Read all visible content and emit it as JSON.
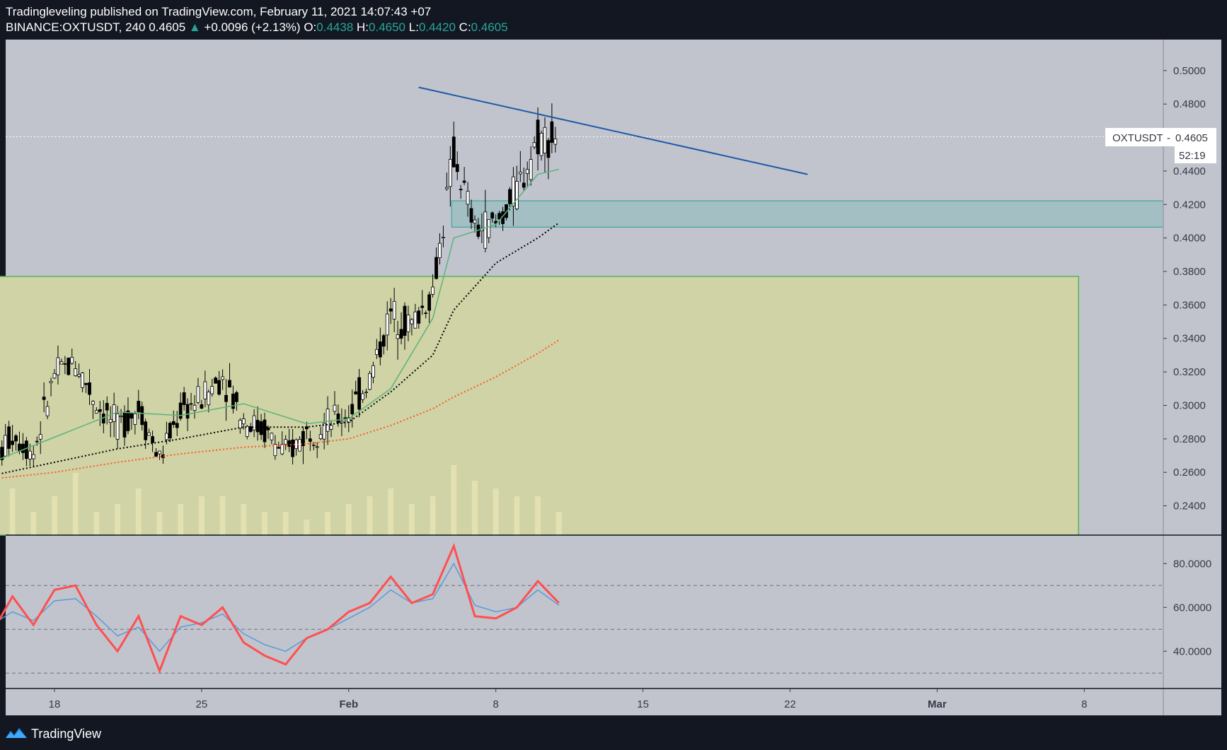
{
  "header": {
    "line1": "Tradingleveling published on TradingView.com, February 11, 2021 14:07:43 +07",
    "symbol": "BINANCE:OXTUSDT, 240",
    "last": "0.4605",
    "change_arrow": "▲",
    "change": "+0.0096 (+2.13%)",
    "o_label": "O:",
    "o_value": "0.4438",
    "h_label": "H:",
    "h_value": "0.4650",
    "l_label": "L:",
    "l_value": "0.4420",
    "c_label": "C:",
    "c_value": "0.4605"
  },
  "price_label": {
    "symbol": "OXTUSDT",
    "value": "0.4605",
    "countdown": "52:19"
  },
  "footer": {
    "brand": "TradingView",
    "logo_icon": "tradingview-logo-icon"
  },
  "colors": {
    "background": "#131722",
    "chart_bg": "#c1c4cd",
    "accent_up": "#26a69a",
    "trendline": "#1c5aa6",
    "zone_yellow": "#cfd3a6",
    "zone_teal": "#a4bfc4",
    "ma_green": "#5cb47a",
    "ma_black": "#000000",
    "ma_orange": "#ff5a1f",
    "rsi": "#ff4f4f",
    "rsi_signal": "#5a9bd8"
  },
  "chart_data": [
    {
      "type": "candlestick",
      "symbol": "BINANCE:OXTUSDT",
      "interval": "240",
      "y_axis_ticks": [
        "0.5000",
        "0.4800",
        "0.4600",
        "0.4400",
        "0.4200",
        "0.4000",
        "0.3800",
        "0.3600",
        "0.3400",
        "0.3200",
        "0.3000",
        "0.2800",
        "0.2600",
        "0.2400"
      ],
      "ylim": [
        0.2225,
        0.5185
      ],
      "x_axis_ticks": [
        "18",
        "25",
        "Feb",
        "8",
        "15",
        "22",
        "Mar",
        "8"
      ],
      "last_price": 0.4605,
      "open": 0.4438,
      "high": 0.465,
      "low": 0.442,
      "close": 0.4605,
      "close_path": [
        {
          "date": "2021-01-15",
          "close": 0.262
        },
        {
          "date": "2021-01-16",
          "close": 0.283
        },
        {
          "date": "2021-01-17",
          "close": 0.272
        },
        {
          "date": "2021-01-18",
          "close": 0.318
        },
        {
          "date": "2021-01-19",
          "close": 0.326
        },
        {
          "date": "2021-01-20",
          "close": 0.301
        },
        {
          "date": "2021-01-21",
          "close": 0.287
        },
        {
          "date": "2021-01-22",
          "close": 0.299
        },
        {
          "date": "2021-01-23",
          "close": 0.268
        },
        {
          "date": "2021-01-24",
          "close": 0.297
        },
        {
          "date": "2021-01-25",
          "close": 0.304
        },
        {
          "date": "2021-01-26",
          "close": 0.318
        },
        {
          "date": "2021-01-27",
          "close": 0.292
        },
        {
          "date": "2021-01-28",
          "close": 0.285
        },
        {
          "date": "2021-01-29",
          "close": 0.27
        },
        {
          "date": "2021-01-30",
          "close": 0.284
        },
        {
          "date": "2021-01-31",
          "close": 0.289
        },
        {
          "date": "2021-02-01",
          "close": 0.296
        },
        {
          "date": "2021-02-02",
          "close": 0.316
        },
        {
          "date": "2021-02-03",
          "close": 0.355
        },
        {
          "date": "2021-02-04",
          "close": 0.348
        },
        {
          "date": "2021-02-05",
          "close": 0.368
        },
        {
          "date": "2021-02-06",
          "close": 0.45
        },
        {
          "date": "2021-02-07",
          "close": 0.405
        },
        {
          "date": "2021-02-08",
          "close": 0.408
        },
        {
          "date": "2021-02-09",
          "close": 0.428
        },
        {
          "date": "2021-02-10",
          "close": 0.46
        },
        {
          "date": "2021-02-11",
          "close": 0.4605
        }
      ],
      "moving_averages": [
        {
          "color": "#5cb47a",
          "style": "solid",
          "points": [
            [
              "2021-01-15",
              0.266
            ],
            [
              "2021-01-18",
              0.281
            ],
            [
              "2021-01-21",
              0.296
            ],
            [
              "2021-01-24",
              0.294
            ],
            [
              "2021-01-27",
              0.301
            ],
            [
              "2021-01-30",
              0.289
            ],
            [
              "2021-02-01",
              0.292
            ],
            [
              "2021-02-03",
              0.31
            ],
            [
              "2021-02-05",
              0.352
            ],
            [
              "2021-02-06",
              0.4
            ],
            [
              "2021-02-08",
              0.408
            ],
            [
              "2021-02-10",
              0.438
            ],
            [
              "2021-02-11",
              0.441
            ]
          ]
        },
        {
          "color": "#000000",
          "style": "dotted",
          "points": [
            [
              "2021-01-15",
              0.258
            ],
            [
              "2021-01-18",
              0.266
            ],
            [
              "2021-01-21",
              0.274
            ],
            [
              "2021-01-24",
              0.28
            ],
            [
              "2021-01-27",
              0.287
            ],
            [
              "2021-01-30",
              0.287
            ],
            [
              "2021-02-01",
              0.29
            ],
            [
              "2021-02-03",
              0.308
            ],
            [
              "2021-02-05",
              0.33
            ],
            [
              "2021-02-06",
              0.357
            ],
            [
              "2021-02-08",
              0.385
            ],
            [
              "2021-02-10",
              0.4
            ],
            [
              "2021-02-11",
              0.409
            ]
          ]
        },
        {
          "color": "#ff5a1f",
          "style": "dotted",
          "points": [
            [
              "2021-01-15",
              0.256
            ],
            [
              "2021-01-18",
              0.26
            ],
            [
              "2021-01-21",
              0.266
            ],
            [
              "2021-01-24",
              0.271
            ],
            [
              "2021-01-27",
              0.275
            ],
            [
              "2021-01-30",
              0.277
            ],
            [
              "2021-02-01",
              0.28
            ],
            [
              "2021-02-03",
              0.288
            ],
            [
              "2021-02-05",
              0.298
            ],
            [
              "2021-02-06",
              0.305
            ],
            [
              "2021-02-08",
              0.317
            ],
            [
              "2021-02-10",
              0.331
            ],
            [
              "2021-02-11",
              0.339
            ]
          ]
        }
      ],
      "volume_relative": [
        0.4,
        0.6,
        0.3,
        0.5,
        0.8,
        0.3,
        0.4,
        0.6,
        0.3,
        0.4,
        0.5,
        0.5,
        0.4,
        0.3,
        0.3,
        0.2,
        0.3,
        0.4,
        0.5,
        0.6,
        0.4,
        0.5,
        0.9,
        0.7,
        0.6,
        0.5,
        0.5,
        0.3
      ],
      "drawings": {
        "trendline": {
          "from": [
            "2021-02-05",
            0.49
          ],
          "to": [
            "2021-02-23",
            0.438
          ],
          "color": "#1c5aa6"
        },
        "zone_teal": {
          "y_from": 0.4065,
          "y_to": 0.4222,
          "x_from": "2021-02-06"
        },
        "zone_yellow": {
          "y_from": 0.2225,
          "y_to": 0.377,
          "x_from": "2021-01-15",
          "x_to": "2021-03-08"
        }
      }
    },
    {
      "type": "line",
      "indicator": "RSI",
      "y_axis_ticks": [
        "80.0000",
        "60.0000",
        "40.0000"
      ],
      "ylim": [
        23,
        93
      ],
      "levels": [
        70,
        50,
        30
      ],
      "series": [
        {
          "color": "#ff4f4f",
          "points": [
            [
              "2021-01-15",
              48
            ],
            [
              "2021-01-16",
              65
            ],
            [
              "2021-01-17",
              52
            ],
            [
              "2021-01-18",
              68
            ],
            [
              "2021-01-19",
              70
            ],
            [
              "2021-01-20",
              52
            ],
            [
              "2021-01-21",
              40
            ],
            [
              "2021-01-22",
              56
            ],
            [
              "2021-01-23",
              31
            ],
            [
              "2021-01-24",
              56
            ],
            [
              "2021-01-25",
              52
            ],
            [
              "2021-01-26",
              60
            ],
            [
              "2021-01-27",
              44
            ],
            [
              "2021-01-28",
              38
            ],
            [
              "2021-01-29",
              34
            ],
            [
              "2021-01-30",
              46
            ],
            [
              "2021-01-31",
              50
            ],
            [
              "2021-02-01",
              58
            ],
            [
              "2021-02-02",
              62
            ],
            [
              "2021-02-03",
              74
            ],
            [
              "2021-02-04",
              62
            ],
            [
              "2021-02-05",
              66
            ],
            [
              "2021-02-06",
              88
            ],
            [
              "2021-02-07",
              56
            ],
            [
              "2021-02-08",
              55
            ],
            [
              "2021-02-09",
              60
            ],
            [
              "2021-02-10",
              72
            ],
            [
              "2021-02-11",
              62
            ]
          ]
        },
        {
          "color": "#5a9bd8",
          "points": [
            [
              "2021-01-15",
              52
            ],
            [
              "2021-01-16",
              58
            ],
            [
              "2021-01-17",
              54
            ],
            [
              "2021-01-18",
              63
            ],
            [
              "2021-01-19",
              64
            ],
            [
              "2021-01-20",
              56
            ],
            [
              "2021-01-21",
              47
            ],
            [
              "2021-01-22",
              51
            ],
            [
              "2021-01-23",
              40
            ],
            [
              "2021-01-24",
              51
            ],
            [
              "2021-01-25",
              53
            ],
            [
              "2021-01-26",
              57
            ],
            [
              "2021-01-27",
              48
            ],
            [
              "2021-01-28",
              43
            ],
            [
              "2021-01-29",
              40
            ],
            [
              "2021-01-30",
              46
            ],
            [
              "2021-01-31",
              50
            ],
            [
              "2021-02-01",
              55
            ],
            [
              "2021-02-02",
              60
            ],
            [
              "2021-02-03",
              68
            ],
            [
              "2021-02-04",
              62
            ],
            [
              "2021-02-05",
              64
            ],
            [
              "2021-02-06",
              80
            ],
            [
              "2021-02-07",
              61
            ],
            [
              "2021-02-08",
              58
            ],
            [
              "2021-02-09",
              60
            ],
            [
              "2021-02-10",
              68
            ],
            [
              "2021-02-11",
              61
            ]
          ]
        }
      ]
    }
  ]
}
